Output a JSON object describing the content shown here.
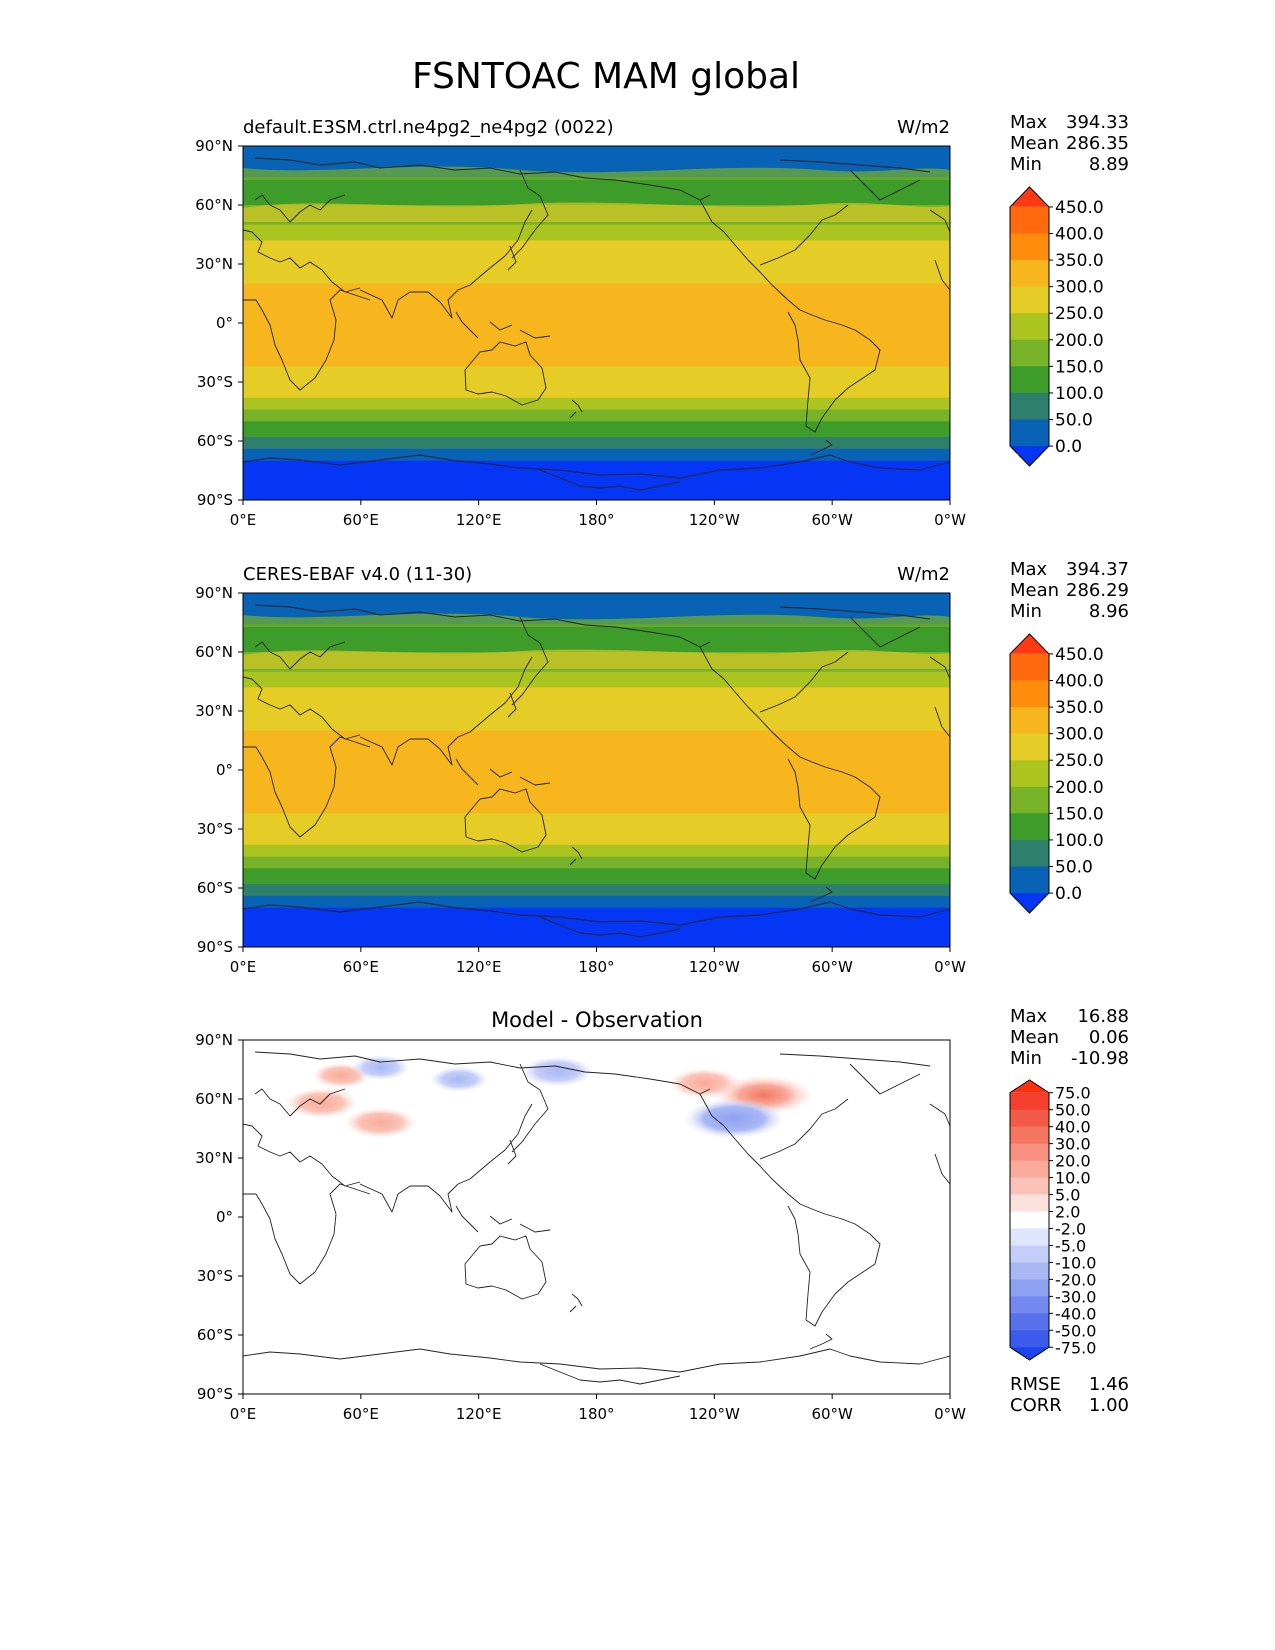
{
  "title": "FSNTOAC MAM global",
  "tick_labels": {
    "lat": [
      "90°N",
      "60°N",
      "30°N",
      "0°",
      "30°S",
      "60°S",
      "90°S"
    ],
    "lon": [
      "0°E",
      "60°E",
      "120°E",
      "180°",
      "120°W",
      "60°W",
      "0°W"
    ]
  },
  "stat_labels": {
    "max": "Max",
    "mean": "Mean",
    "min": "Min",
    "rmse": "RMSE",
    "corr": "CORR"
  },
  "panels": [
    {
      "title_left": "default.E3SM.ctrl.ne4pg2_ne4pg2 (0022)",
      "title_center": "",
      "units": "W/m2",
      "stats": {
        "max": "394.33",
        "mean": "286.35",
        "min": "8.89"
      },
      "colorbar": {
        "labels": [
          "450.0",
          "400.0",
          "350.0",
          "300.0",
          "250.0",
          "200.0",
          "150.0",
          "100.0",
          "50.0",
          "0.0"
        ],
        "colors": [
          "#ff3a12",
          "#ff6a0e",
          "#ff8c0a",
          "#f8b61e",
          "#e6cc26",
          "#acc420",
          "#78b228",
          "#3d9c2a",
          "#2e7f6c",
          "#0862b6",
          "#0536f6"
        ]
      }
    },
    {
      "title_left": "CERES-EBAF v4.0 (11-30)",
      "title_center": "",
      "units": "W/m2",
      "stats": {
        "max": "394.37",
        "mean": "286.29",
        "min": "8.96"
      },
      "colorbar": {
        "labels": [
          "450.0",
          "400.0",
          "350.0",
          "300.0",
          "250.0",
          "200.0",
          "150.0",
          "100.0",
          "50.0",
          "0.0"
        ],
        "colors": [
          "#ff3a12",
          "#ff6a0e",
          "#ff8c0a",
          "#f8b61e",
          "#e6cc26",
          "#acc420",
          "#78b228",
          "#3d9c2a",
          "#2e7f6c",
          "#0862b6",
          "#0536f6"
        ]
      }
    },
    {
      "title_left": "",
      "title_center": "Model - Observation",
      "units": "",
      "stats": {
        "max": "16.88",
        "mean": "0.06",
        "min": "-10.98"
      },
      "metrics": {
        "rmse": "1.46",
        "corr": "1.00"
      },
      "colorbar": {
        "labels": [
          "75.0",
          "50.0",
          "40.0",
          "30.0",
          "20.0",
          "10.0",
          "5.0",
          "2.0",
          "-2.0",
          "-5.0",
          "-10.0",
          "-20.0",
          "-30.0",
          "-40.0",
          "-50.0",
          "-75.0"
        ],
        "colors": [
          "#ff3010",
          "#f5402f",
          "#f45a48",
          "#f47560",
          "#f79080",
          "#f9aa9a",
          "#fbc3b7",
          "#fde1dc",
          "#ffffff",
          "#dfe6fb",
          "#c4cef8",
          "#a9b7f5",
          "#8ea0f2",
          "#7389ef",
          "#5872ec",
          "#3c5bea",
          "#1e44f2"
        ]
      }
    }
  ],
  "chart_data": {
    "type": "heatmap",
    "title": "FSNTOAC MAM global",
    "projection": "PlateCarree",
    "xlabel": "",
    "ylabel": "",
    "xlim": [
      0,
      360
    ],
    "ylim": [
      -90,
      90
    ],
    "xticks": [
      0,
      60,
      120,
      180,
      240,
      300,
      360
    ],
    "yticks": [
      90,
      60,
      30,
      0,
      -30,
      -60,
      -90
    ],
    "zonal_profile": {
      "lat": [
        90,
        80,
        74,
        68,
        60,
        50,
        42,
        34,
        20,
        0,
        -12,
        -22,
        -30,
        -38,
        -44,
        -50,
        -58,
        -64,
        -70,
        -90
      ],
      "model": [
        60,
        70,
        150,
        175,
        220,
        260,
        300,
        330,
        360,
        365,
        355,
        320,
        300,
        260,
        230,
        180,
        130,
        90,
        30,
        20
      ]
    },
    "series": [
      {
        "name": "default.E3SM.ctrl.ne4pg2_ne4pg2 (0022)",
        "units": "W/m2",
        "max": 394.33,
        "mean": 286.35,
        "min": 8.89
      },
      {
        "name": "CERES-EBAF v4.0 (11-30)",
        "units": "W/m2",
        "max": 394.37,
        "mean": 286.29,
        "min": 8.96
      },
      {
        "name": "Model - Observation",
        "max": 16.88,
        "mean": 0.06,
        "min": -10.98,
        "rmse": 1.46,
        "corr": 1.0,
        "anomalies": [
          {
            "lon": 40,
            "lat": 58,
            "value": 10
          },
          {
            "lon": 70,
            "lat": 48,
            "value": 10
          },
          {
            "lon": 50,
            "lat": 72,
            "value": 5
          },
          {
            "lon": 110,
            "lat": 70,
            "value": -5
          },
          {
            "lon": 160,
            "lat": 74,
            "value": -10
          },
          {
            "lon": 70,
            "lat": 76,
            "value": -5
          },
          {
            "lon": 235,
            "lat": 68,
            "value": 10
          },
          {
            "lon": 265,
            "lat": 62,
            "value": 20
          },
          {
            "lon": 250,
            "lat": 50,
            "value": -20
          }
        ]
      }
    ]
  }
}
